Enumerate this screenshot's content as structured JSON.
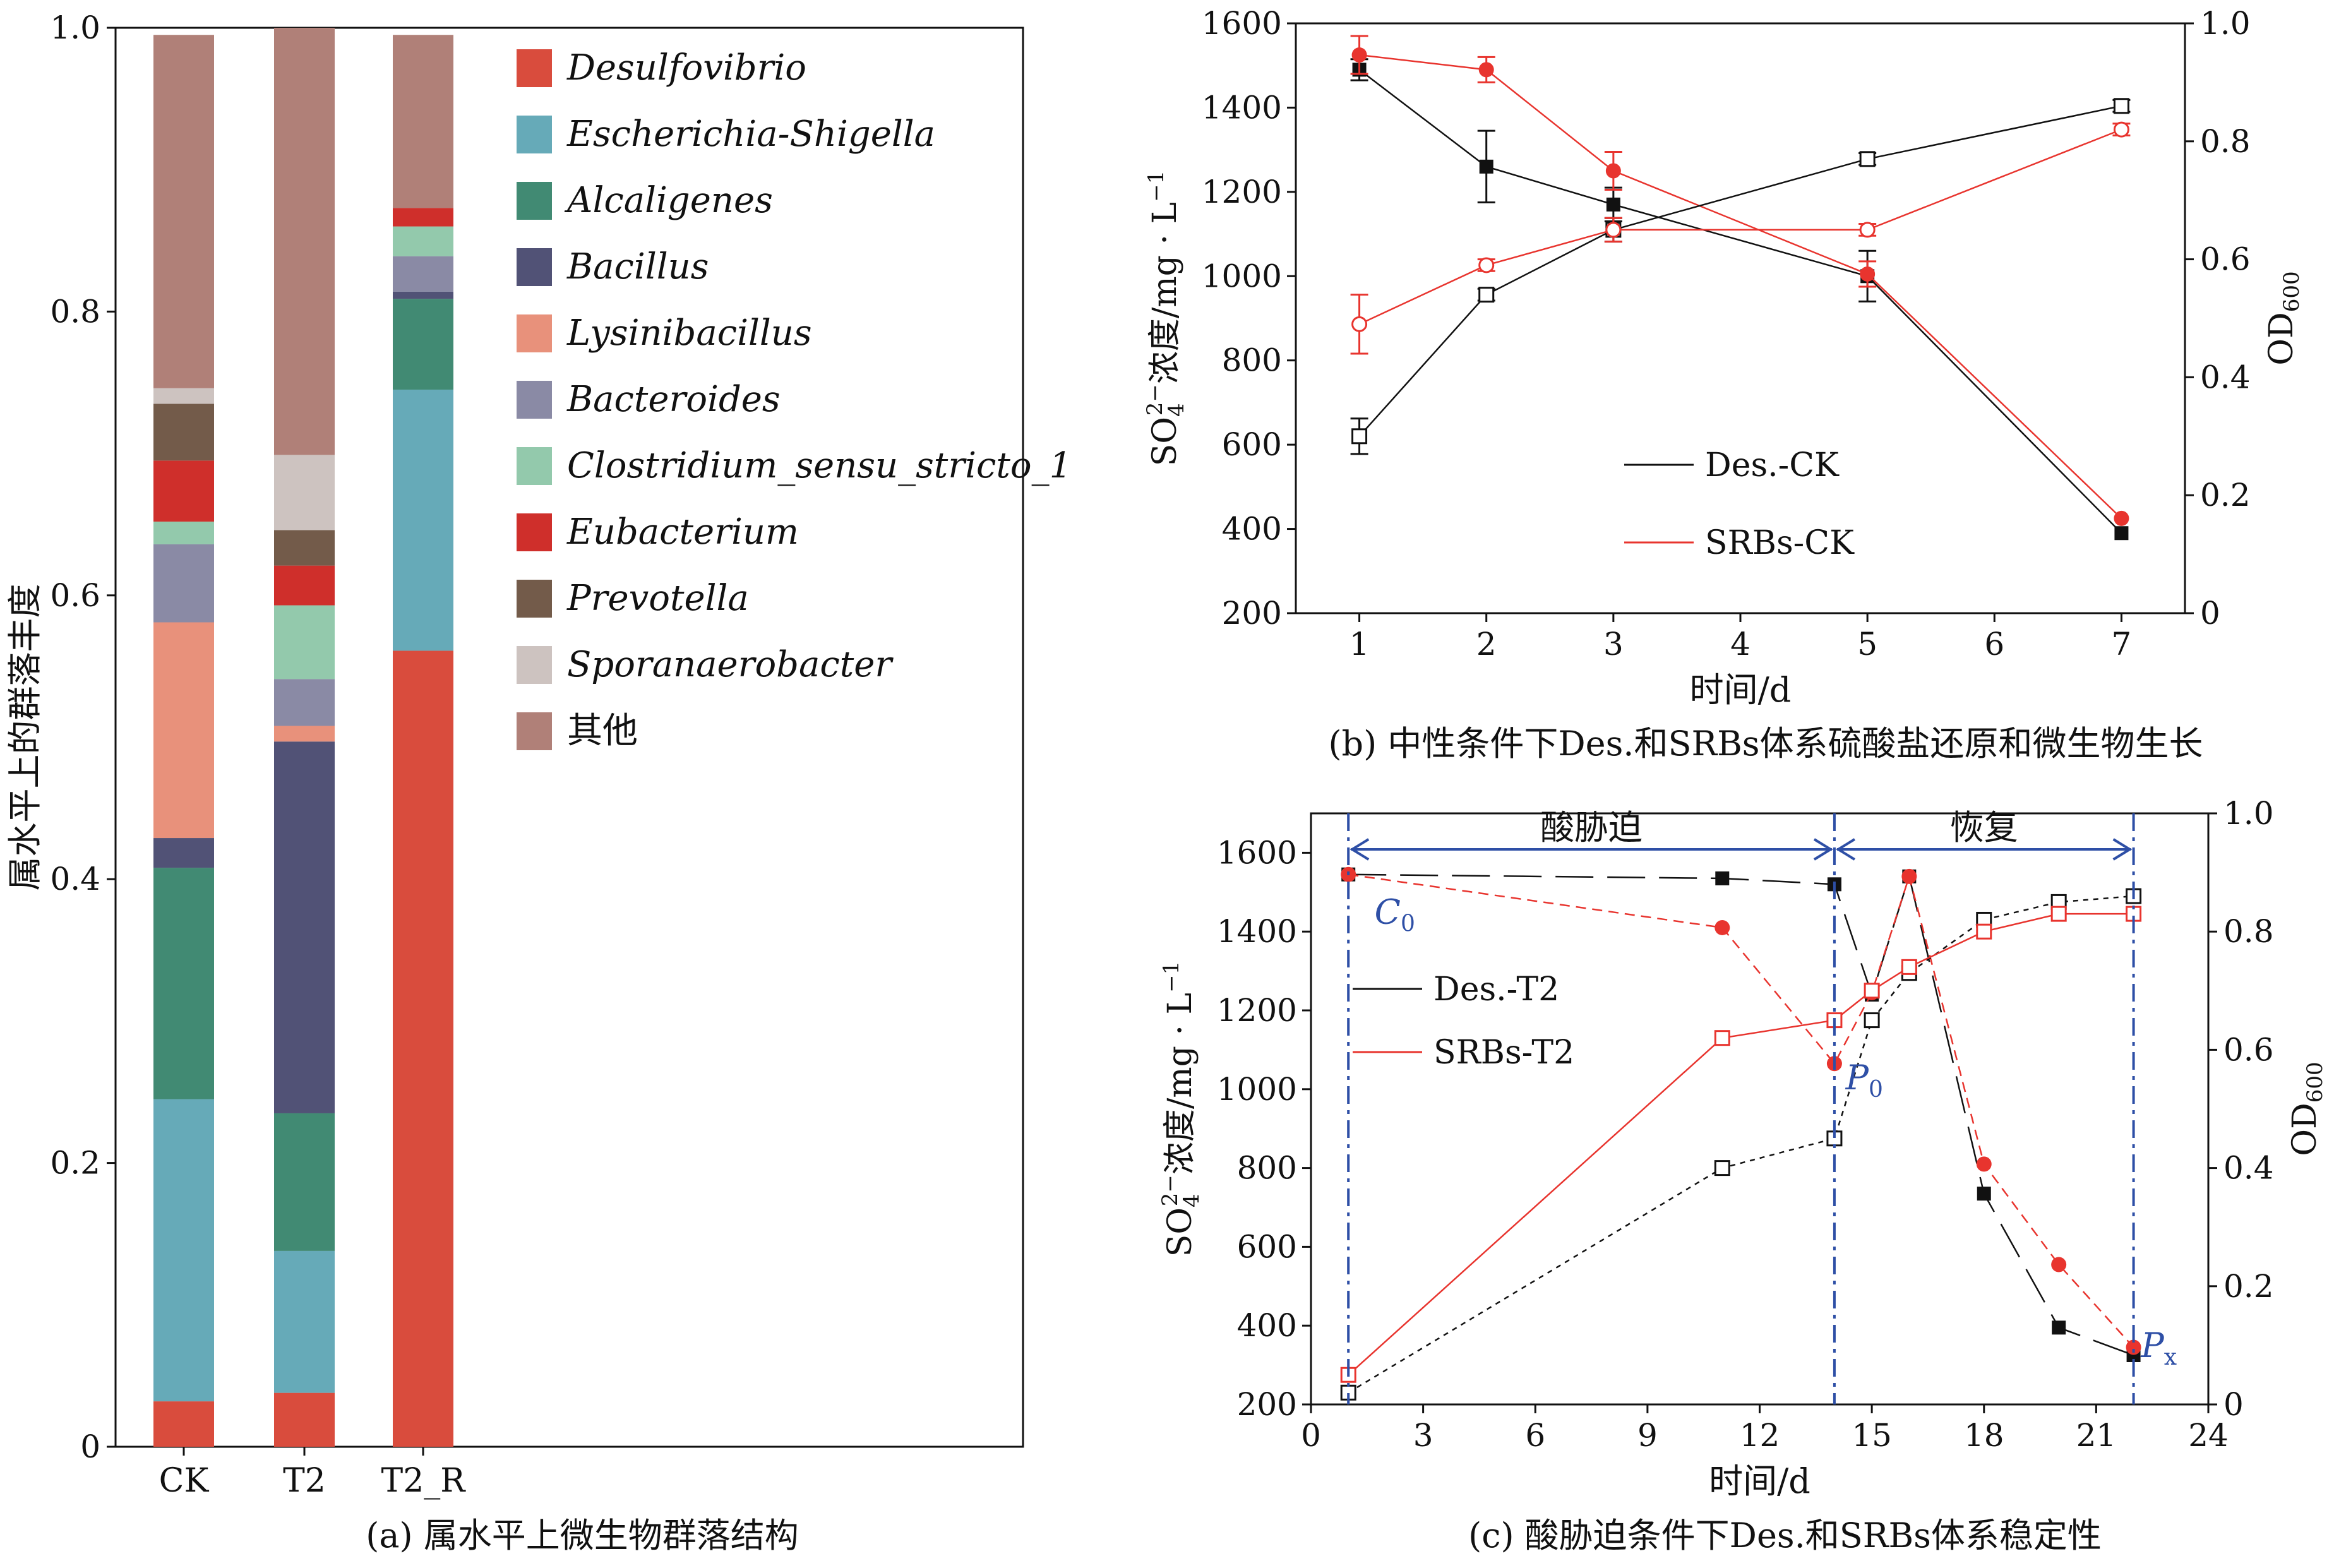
{
  "colors": {
    "black": "#111111",
    "red": "#e8342e",
    "blue": "#2e4fa6",
    "axis": "#111111"
  },
  "chart_data": [
    {
      "id": "a",
      "type": "bar",
      "stacked": true,
      "caption": "(a) 属水平上微生物群落结构",
      "ylabel": "属水平上的群落丰度",
      "ylim": [
        0,
        1.0
      ],
      "yticks": [
        "0",
        "0.2",
        "0.4",
        "0.6",
        "0.8",
        "1.0"
      ],
      "categories": [
        "CK",
        "T2",
        "T2_R"
      ],
      "legend_position": "right",
      "series": [
        {
          "name": "Desulfovibrio",
          "color": "#d94c3d",
          "values": [
            0.032,
            0.038,
            0.561
          ]
        },
        {
          "name": "Escherichia-Shigella",
          "color": "#66aab8",
          "values": [
            0.213,
            0.1,
            0.184
          ]
        },
        {
          "name": "Alcaligenes",
          "color": "#418a73",
          "values": [
            0.163,
            0.097,
            0.064
          ]
        },
        {
          "name": "Bacillus",
          "color": "#515276",
          "values": [
            0.021,
            0.262,
            0.005
          ]
        },
        {
          "name": "Lysinibacillus",
          "color": "#e8917b",
          "values": [
            0.152,
            0.011,
            0.0
          ]
        },
        {
          "name": "Bacteroides",
          "color": "#8a8aa5",
          "values": [
            0.055,
            0.033,
            0.025
          ]
        },
        {
          "name": "Clostridium_sensu_stricto_1",
          "color": "#93c9ac",
          "values": [
            0.016,
            0.052,
            0.021
          ]
        },
        {
          "name": "Eubacterium",
          "color": "#cf2f2b",
          "values": [
            0.043,
            0.028,
            0.013
          ]
        },
        {
          "name": "Prevotella",
          "color": "#735b4a",
          "values": [
            0.04,
            0.025,
            0.0
          ]
        },
        {
          "name": "Sporanaerobacter",
          "color": "#cdc3c0",
          "values": [
            0.011,
            0.053,
            0.0
          ]
        },
        {
          "name": "其他",
          "color": "#b08078",
          "values": [
            0.249,
            0.301,
            0.122
          ]
        }
      ]
    },
    {
      "id": "b",
      "type": "line",
      "caption": "(b) 中性条件下Des.和SRBs体系硫酸盐还原和微生物生长",
      "xlabel": "时间/d",
      "ylabel": "SO42-浓度/mg·L-1",
      "ylabel_parts": {
        "pre": "SO",
        "sub": "4",
        "sup": "2−",
        "mid": "浓度/mg · L",
        "sup2": "−1"
      },
      "y2label": "OD600",
      "y2label_parts": {
        "main": "OD",
        "sub": "600"
      },
      "xlim": [
        0.5,
        7.5
      ],
      "ylim": [
        200,
        1600
      ],
      "y2lim": [
        0,
        1.0
      ],
      "xticks": [
        "1",
        "2",
        "3",
        "4",
        "5",
        "6",
        "7"
      ],
      "yticks": [
        "200",
        "400",
        "600",
        "800",
        "1000",
        "1200",
        "1400",
        "1600"
      ],
      "y2ticks": [
        "0",
        "0.2",
        "0.4",
        "0.6",
        "0.8",
        "1.0"
      ],
      "legend": [
        "Des.-CK",
        "SRBs-CK"
      ],
      "series": [
        {
          "name": "Des.-CK SO4",
          "axis": "left",
          "color": "black",
          "marker": "filled-square",
          "x": [
            1,
            2,
            3,
            5,
            7
          ],
          "y": [
            1490,
            1260,
            1170,
            1000,
            390
          ],
          "err": [
            25,
            85,
            40,
            60,
            0
          ]
        },
        {
          "name": "SRBs-CK SO4",
          "axis": "left",
          "color": "red",
          "marker": "filled-circle",
          "x": [
            1,
            2,
            3,
            5,
            7
          ],
          "y": [
            1525,
            1490,
            1250,
            1005,
            425
          ],
          "err": [
            45,
            30,
            45,
            30,
            0
          ]
        },
        {
          "name": "Des.-CK OD600",
          "axis": "right",
          "color": "black",
          "marker": "open-square",
          "x": [
            1,
            2,
            3,
            5,
            7
          ],
          "y": [
            0.3,
            0.54,
            0.65,
            0.77,
            0.86
          ],
          "err": [
            0.03,
            0.01,
            0.02,
            0.01,
            0.01
          ]
        },
        {
          "name": "SRBs-CK OD600",
          "axis": "right",
          "color": "red",
          "marker": "open-circle",
          "x": [
            1,
            2,
            3,
            5,
            7
          ],
          "y": [
            0.49,
            0.59,
            0.65,
            0.65,
            0.82
          ],
          "err": [
            0.05,
            0.01,
            0.02,
            0.01,
            0.01
          ]
        }
      ]
    },
    {
      "id": "c",
      "type": "line",
      "caption": "(c) 酸胁迫条件下Des.和SRBs体系稳定性",
      "xlabel": "时间/d",
      "ylabel": "SO42-浓度/mg·L-1",
      "ylabel_parts": {
        "pre": "SO",
        "sub": "4",
        "sup": "2−",
        "mid": "浓度/mg · L",
        "sup2": "−1"
      },
      "y2label": "OD600",
      "y2label_parts": {
        "main": "OD",
        "sub": "600"
      },
      "xlim": [
        0,
        24
      ],
      "ylim": [
        200,
        1700
      ],
      "y2lim": [
        0,
        1.0
      ],
      "xticks": [
        "0",
        "3",
        "6",
        "9",
        "12",
        "15",
        "18",
        "21",
        "24"
      ],
      "yticks": [
        "200",
        "400",
        "600",
        "800",
        "1000",
        "1200",
        "1400",
        "1600"
      ],
      "y2ticks": [
        "0",
        "0.2",
        "0.4",
        "0.6",
        "0.8",
        "1.0"
      ],
      "legend": [
        "Des.-T2",
        "SRBs-T2"
      ],
      "phases": [
        {
          "label": "酸胁迫",
          "from": 1,
          "to": 14
        },
        {
          "label": "恢复",
          "from": 14,
          "to": 22
        }
      ],
      "vlines": [
        1,
        14,
        22
      ],
      "annotations": [
        {
          "main": "C",
          "sub": "0",
          "x": 1.7,
          "y": 1420
        },
        {
          "main": "P",
          "sub": "0",
          "x": 14.3,
          "y": 1000
        },
        {
          "main": "P",
          "sub": "x",
          "x": 22.2,
          "y": 320
        }
      ],
      "series": [
        {
          "name": "Des.-T2 SO4",
          "axis": "left",
          "color": "black",
          "marker": "filled-square",
          "x": [
            1,
            11,
            14,
            15,
            16,
            18,
            20,
            22
          ],
          "y": [
            1545,
            1535,
            1520,
            1240,
            1540,
            735,
            395,
            325
          ],
          "dash": "long"
        },
        {
          "name": "SRBs-T2 SO4",
          "axis": "left",
          "color": "red",
          "marker": "filled-circle",
          "x": [
            1,
            11,
            14,
            15,
            16,
            18,
            20,
            22
          ],
          "y": [
            1545,
            1410,
            1065,
            1245,
            1540,
            810,
            555,
            345
          ],
          "dash": "short"
        },
        {
          "name": "Des.-T2 OD600",
          "axis": "right",
          "color": "black",
          "marker": "open-square",
          "x": [
            1,
            11,
            14,
            15,
            16,
            18,
            20,
            22
          ],
          "y": [
            0.02,
            0.4,
            0.45,
            0.65,
            0.73,
            0.82,
            0.85,
            0.86
          ],
          "dash": "dot"
        },
        {
          "name": "SRBs-T2 OD600",
          "axis": "right",
          "color": "red",
          "marker": "open-square",
          "x": [
            1,
            11,
            14,
            15,
            16,
            18,
            20,
            22
          ],
          "y": [
            0.05,
            0.62,
            0.65,
            0.7,
            0.74,
            0.8,
            0.83,
            0.83
          ],
          "dash": "none"
        }
      ]
    }
  ]
}
